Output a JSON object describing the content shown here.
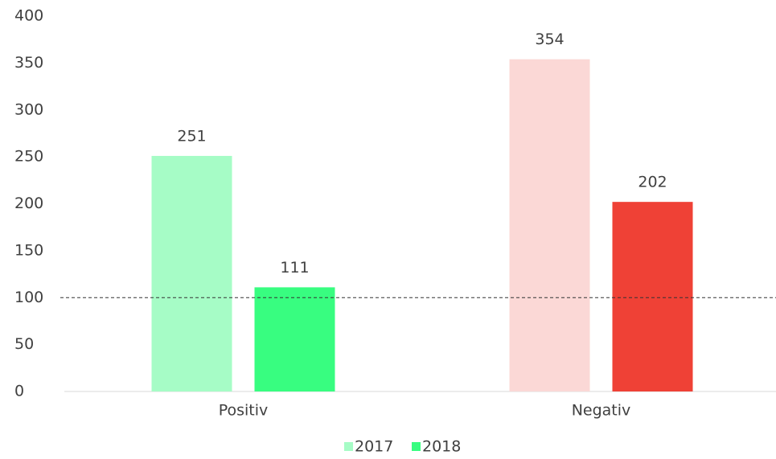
{
  "chart_data": {
    "type": "bar",
    "categories": [
      "Positiv",
      "Negativ"
    ],
    "series": [
      {
        "name": "2017",
        "color": "#a6fcc6",
        "colors": [
          "#a6fcc6",
          "#fbd8d6"
        ],
        "values": [
          251,
          354
        ]
      },
      {
        "name": "2018",
        "color": "#38fd80",
        "colors": [
          "#38fd80",
          "#ef4136"
        ],
        "values": [
          111,
          202
        ]
      }
    ],
    "ylim": [
      0,
      400
    ],
    "yticks": [
      0,
      50,
      100,
      150,
      200,
      250,
      300,
      350,
      400
    ],
    "reference_line": 100,
    "grid": false,
    "legend": "bottom"
  }
}
